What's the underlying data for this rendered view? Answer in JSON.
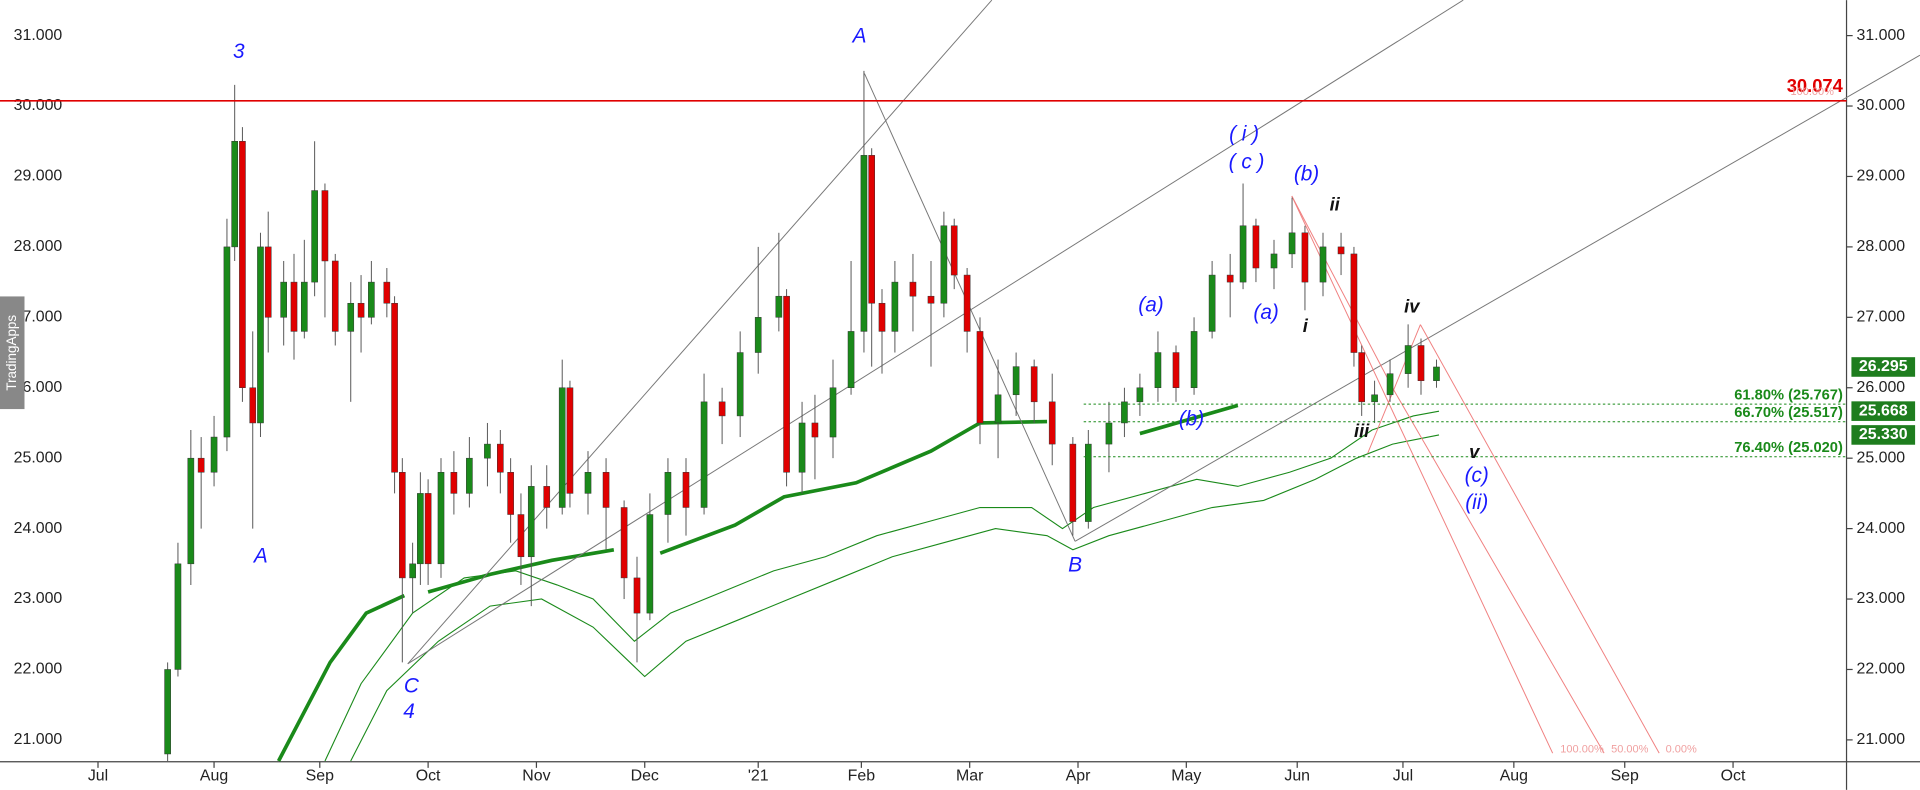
{
  "chart_data": {
    "type": "candlestick",
    "watermark": "TradingApps",
    "up_color": "#1a8a1a",
    "down_color": "#e00000",
    "xlim": [
      0,
      358
    ],
    "ylim": [
      20.69,
      31.504
    ],
    "yticks": [
      {
        "value": 21,
        "label": "21.000"
      },
      {
        "value": 22,
        "label": "22.000"
      },
      {
        "value": 23,
        "label": "23.000"
      },
      {
        "value": 24,
        "label": "24.000"
      },
      {
        "value": 25,
        "label": "25.000"
      },
      {
        "value": 26,
        "label": "26.000"
      },
      {
        "value": 27,
        "label": "27.000"
      },
      {
        "value": 28,
        "label": "28.000"
      },
      {
        "value": 29,
        "label": "29.000"
      },
      {
        "value": 30,
        "label": "30.000"
      },
      {
        "value": 31,
        "label": "31.000"
      }
    ],
    "xticks": [
      {
        "value": 19,
        "label": "Jul"
      },
      {
        "value": 41.5,
        "label": "Aug"
      },
      {
        "value": 62,
        "label": "Sep"
      },
      {
        "value": 83,
        "label": "Oct"
      },
      {
        "value": 104,
        "label": "Nov"
      },
      {
        "value": 125,
        "label": "Dec"
      },
      {
        "value": 147,
        "label": "'21"
      },
      {
        "value": 167,
        "label": "Feb"
      },
      {
        "value": 188,
        "label": "Mar"
      },
      {
        "value": 209,
        "label": "Apr"
      },
      {
        "value": 230,
        "label": "May"
      },
      {
        "value": 251.5,
        "label": "Jun"
      },
      {
        "value": 272,
        "label": "Jul"
      },
      {
        "value": 293.5,
        "label": "Aug"
      },
      {
        "value": 315,
        "label": "Sep"
      },
      {
        "value": 336,
        "label": "Oct"
      }
    ],
    "x": [
      32.5,
      34.5,
      37,
      39,
      41.5,
      44,
      45.5,
      47,
      49,
      50.5,
      52,
      55,
      57,
      59,
      61,
      63,
      65,
      68,
      70,
      72,
      75,
      76.5,
      78,
      80,
      81.5,
      83,
      85.5,
      88,
      91,
      94.5,
      97,
      99,
      101,
      103,
      106,
      109,
      110.5,
      114,
      117.5,
      121,
      123.5,
      126,
      129.5,
      133,
      136.5,
      140,
      143.5,
      147,
      151,
      152.5,
      155.5,
      158,
      161.5,
      165,
      167.5,
      169,
      171,
      173.5,
      177,
      180.5,
      183,
      185,
      187.5,
      190,
      193.5,
      197,
      200.5,
      204,
      208,
      211,
      215,
      218,
      221,
      224.5,
      228,
      231.5,
      235,
      238.5,
      241,
      243.5,
      247,
      250.5,
      253,
      256.5,
      260,
      262.5,
      264,
      266.5,
      269.5,
      273,
      275.5,
      278.5
    ],
    "open": [
      20.8,
      22.0,
      23.5,
      25.0,
      24.8,
      25.3,
      28.0,
      29.5,
      26.0,
      25.5,
      28.0,
      27.0,
      27.5,
      26.8,
      27.5,
      28.8,
      27.8,
      26.8,
      27.2,
      27.0,
      27.5,
      27.2,
      24.8,
      23.3,
      23.5,
      24.5,
      23.5,
      24.8,
      24.5,
      25.0,
      25.2,
      24.8,
      24.2,
      23.6,
      24.6,
      24.3,
      26.0,
      24.5,
      24.8,
      24.3,
      23.3,
      22.8,
      24.2,
      24.8,
      24.3,
      25.8,
      25.6,
      26.5,
      27.0,
      27.3,
      24.8,
      25.5,
      25.3,
      26.0,
      26.8,
      29.3,
      27.2,
      26.8,
      27.5,
      27.3,
      27.2,
      28.3,
      27.6,
      26.8,
      25.5,
      25.9,
      26.3,
      25.8,
      25.2,
      24.1,
      25.2,
      25.5,
      25.8,
      26.0,
      26.5,
      26.0,
      26.8,
      27.6,
      27.5,
      28.3,
      27.7,
      27.9,
      28.2,
      27.5,
      28.0,
      27.9,
      26.5,
      25.8,
      25.9,
      26.2,
      26.6,
      26.1
    ],
    "high": [
      22.1,
      23.8,
      25.4,
      25.3,
      25.6,
      28.4,
      30.3,
      29.7,
      26.8,
      28.2,
      28.5,
      27.8,
      27.9,
      28.1,
      29.5,
      28.9,
      27.9,
      27.5,
      27.6,
      27.8,
      27.7,
      27.3,
      25.0,
      23.8,
      24.8,
      24.7,
      25.0,
      25.1,
      25.3,
      25.5,
      25.4,
      25.0,
      24.5,
      24.9,
      24.9,
      26.4,
      26.1,
      25.1,
      25.0,
      24.4,
      23.6,
      24.5,
      25.0,
      25.0,
      26.2,
      26.0,
      26.8,
      28.0,
      28.2,
      27.4,
      25.8,
      25.9,
      26.4,
      27.8,
      30.5,
      29.4,
      27.4,
      27.8,
      27.9,
      27.8,
      28.5,
      28.4,
      27.7,
      27.0,
      26.4,
      26.5,
      26.4,
      26.2,
      25.3,
      25.4,
      25.8,
      26.0,
      26.2,
      26.8,
      26.6,
      27.0,
      27.8,
      27.9,
      28.9,
      28.4,
      28.1,
      28.7,
      28.3,
      28.2,
      28.2,
      28.0,
      26.6,
      26.1,
      26.4,
      26.9,
      26.7,
      26.4
    ],
    "low": [
      20.7,
      21.9,
      23.2,
      24.0,
      24.6,
      25.1,
      27.8,
      25.8,
      24.0,
      25.3,
      26.5,
      26.6,
      26.4,
      26.7,
      27.3,
      27.0,
      26.6,
      25.8,
      26.5,
      26.9,
      27.0,
      24.5,
      22.1,
      22.8,
      23.2,
      23.2,
      23.3,
      24.2,
      24.3,
      24.6,
      24.5,
      23.8,
      23.2,
      22.9,
      24.0,
      24.2,
      24.3,
      24.2,
      23.7,
      23.0,
      22.1,
      22.7,
      23.8,
      23.9,
      24.2,
      25.2,
      25.3,
      26.2,
      26.8,
      24.6,
      24.5,
      24.7,
      25.0,
      25.9,
      26.5,
      26.3,
      26.2,
      26.5,
      26.8,
      26.3,
      27.0,
      27.4,
      26.5,
      25.2,
      25.0,
      25.6,
      25.5,
      24.9,
      23.9,
      24.0,
      24.8,
      25.3,
      25.6,
      25.8,
      25.8,
      25.9,
      26.7,
      27.0,
      27.4,
      27.5,
      27.4,
      27.7,
      27.1,
      27.3,
      27.6,
      26.3,
      25.6,
      25.5,
      25.8,
      26.0,
      25.9,
      26.0
    ],
    "close": [
      22.0,
      23.5,
      25.0,
      24.8,
      25.3,
      28.0,
      29.5,
      26.0,
      25.5,
      28.0,
      27.0,
      27.5,
      26.8,
      27.5,
      28.8,
      27.8,
      26.8,
      27.2,
      27.0,
      27.5,
      27.2,
      24.8,
      23.3,
      23.5,
      24.5,
      23.5,
      24.8,
      24.5,
      25.0,
      25.2,
      24.8,
      24.2,
      23.6,
      24.6,
      24.3,
      26.0,
      24.5,
      24.8,
      24.3,
      23.3,
      22.8,
      24.2,
      24.8,
      24.3,
      25.8,
      25.6,
      26.5,
      27.0,
      27.3,
      24.8,
      25.5,
      25.3,
      26.0,
      26.8,
      29.3,
      27.2,
      26.8,
      27.5,
      27.3,
      27.2,
      28.3,
      27.6,
      26.8,
      25.5,
      25.9,
      26.3,
      25.8,
      25.2,
      24.1,
      25.2,
      25.5,
      25.8,
      26.0,
      26.5,
      26.0,
      26.8,
      27.6,
      27.5,
      28.3,
      27.7,
      27.9,
      28.2,
      27.5,
      28.0,
      27.9,
      26.5,
      25.8,
      25.9,
      26.2,
      26.6,
      26.1,
      26.295
    ],
    "overlays": [
      {
        "color": "#1a8a1a",
        "width": 3,
        "x": [
          54,
          64,
          71,
          78.4,
          79,
          83,
          95,
          107,
          119,
          120,
          128,
          142.5,
          152,
          166,
          180.5,
          190,
          203,
          204,
          221,
          240
        ],
        "values": [
          20.7,
          22.1,
          22.8,
          23.05,
          null,
          23.1,
          23.35,
          23.55,
          23.7,
          null,
          23.65,
          24.05,
          24.45,
          24.65,
          25.1,
          25.5,
          25.52,
          null,
          25.35,
          25.75
        ]
      },
      {
        "color": "#1a8a1a",
        "width": 0.9,
        "x": [
          63,
          70,
          80,
          90,
          100,
          108,
          115,
          123,
          130,
          140,
          150,
          160,
          170,
          180,
          190,
          200,
          206,
          212,
          222,
          232,
          240,
          250,
          258,
          266,
          274,
          279
        ],
        "values": [
          20.7,
          21.8,
          22.8,
          23.3,
          23.4,
          23.2,
          23.0,
          22.4,
          22.8,
          23.1,
          23.4,
          23.6,
          23.9,
          24.1,
          24.3,
          24.3,
          24.0,
          24.3,
          24.5,
          24.7,
          24.6,
          24.8,
          25.0,
          25.4,
          25.6,
          25.668
        ]
      },
      {
        "color": "#1a8a1a",
        "width": 0.9,
        "x": [
          68,
          75,
          85,
          95,
          105,
          115,
          125,
          133,
          143,
          153,
          163,
          173,
          183,
          193,
          203,
          208,
          215,
          225,
          235,
          245,
          255,
          263,
          270,
          279
        ],
        "values": [
          20.7,
          21.7,
          22.4,
          22.9,
          23.0,
          22.6,
          21.9,
          22.4,
          22.7,
          23.0,
          23.3,
          23.6,
          23.8,
          24.0,
          23.9,
          23.7,
          23.9,
          24.1,
          24.3,
          24.4,
          24.7,
          25.0,
          25.2,
          25.33
        ]
      }
    ],
    "resistance": {
      "value": 30.074,
      "label": "30.074",
      "color": "#e00000"
    },
    "fork_top_label": "100.00%",
    "fork_labels": [
      "100.00%",
      "50.00%",
      "0.00%"
    ],
    "fib_levels": [
      {
        "value": 25.767,
        "label": "61.80% (25.767)"
      },
      {
        "value": 25.517,
        "label": "66.70% (25.517)"
      },
      {
        "value": 25.02,
        "label": "76.40% (25.020)"
      }
    ],
    "price_tags": [
      {
        "value": 26.295,
        "label": "26.295"
      },
      {
        "value": 25.668,
        "label": "25.668"
      },
      {
        "value": 25.33,
        "label": "25.330"
      }
    ],
    "annotations": [
      "3",
      "A",
      "A",
      "B",
      "C",
      "4",
      "( i )",
      "( c )",
      "(b)",
      "ii",
      "(a)",
      "(a)",
      "i",
      "(b)",
      "iv",
      "iii",
      "v",
      "(c)",
      "(ii)"
    ]
  }
}
